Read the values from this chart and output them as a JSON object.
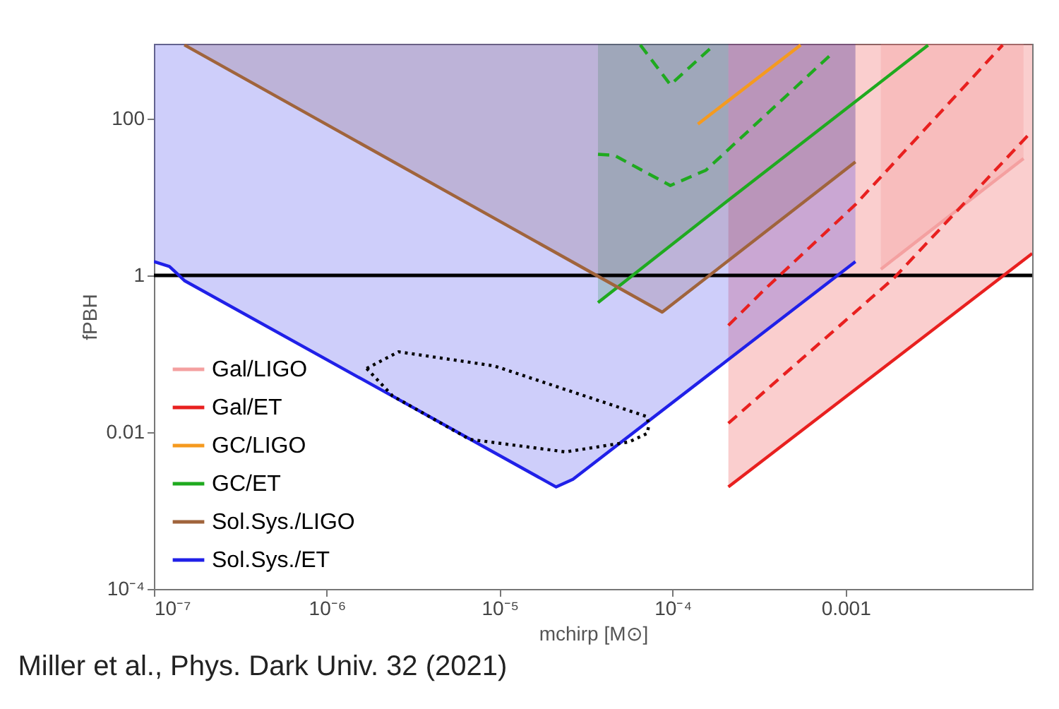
{
  "chart_data": {
    "type": "line",
    "xlabel": "mchirp [M⊙]",
    "ylabel": "fPBH",
    "log": "xy",
    "xlim": [
      1e-07,
      0.012
    ],
    "ylim": [
      0.0001,
      900
    ],
    "xticks": [
      {
        "value": 1e-07,
        "label": "10⁻⁷"
      },
      {
        "value": 1e-06,
        "label": "10⁻⁶"
      },
      {
        "value": 1e-05,
        "label": "10⁻⁵"
      },
      {
        "value": 0.0001,
        "label": "10⁻⁴"
      },
      0.001
    ],
    "yticks": [
      {
        "value": 0.0001,
        "label": "10⁻⁴"
      },
      0.01,
      1,
      100
    ],
    "grid": false,
    "legend": "bottom left",
    "series": [
      {
        "name": "Gal/LIGO",
        "color": "#f4a0a0",
        "x": [
          0.0016,
          0.0107
        ],
        "values": [
          1.2,
          31
        ],
        "lower": [
          1.2,
          31
        ],
        "upper": [
          900,
          900
        ]
      },
      {
        "name": "Gal/ET",
        "color": "#e8201f",
        "x": [
          0.00021,
          0.012
        ],
        "values": [
          0.002,
          1.9
        ],
        "lower": [
          0.002,
          1.9
        ],
        "upper": [
          900,
          900
        ]
      },
      {
        "name": "GC/LIGO",
        "color": "#f59a1f",
        "x": [
          0.00014,
          0.00055
        ],
        "values": [
          85,
          870
        ]
      },
      {
        "name": "GC/ET",
        "color": "#1faa1f",
        "x": [
          3.7e-05,
          0.00021,
          0.003
        ],
        "values": [
          0.45,
          9.1,
          865
        ],
        "lower": [
          0.45,
          9.1,
          null
        ],
        "upper": [
          900,
          900,
          null
        ]
      },
      {
        "name": "Sol.Sys./LIGO",
        "color": "#a0643c",
        "x": [
          1.5e-07,
          8.7e-05,
          0.00114
        ],
        "values": [
          870,
          0.34,
          28
        ],
        "lower": [
          870,
          0.34,
          28
        ],
        "upper": [
          900,
          900,
          900
        ]
      },
      {
        "name": "Sol.Sys./ET",
        "color": "#2020e8",
        "x": [
          1e-07,
          1.23e-07,
          1.51e-07,
          2.12e-05,
          2.65e-05,
          0.00114
        ],
        "values": [
          1.5,
          1.3,
          0.85,
          0.002,
          0.0025,
          1.5
        ],
        "lower": [
          1.5,
          1.3,
          0.85,
          0.002,
          0.0025,
          1.5
        ],
        "upper": [
          900,
          900,
          900,
          900,
          900,
          900
        ]
      },
      {
        "color": "#e8201f",
        "line_style": "dashed",
        "x": [
          0.00021,
          0.00034,
          0.00114,
          0.0081
        ],
        "values": [
          0.23,
          0.66,
          8,
          870
        ]
      },
      {
        "color": "#e8201f",
        "line_style": "dashed",
        "x": [
          0.00021,
          0.0019,
          0.0115
        ],
        "values": [
          0.013,
          0.92,
          63
        ]
      },
      {
        "color": "#1faa1f",
        "line_style": "dashed",
        "x": [
          3.7e-05,
          4.6e-05,
          9.7e-05,
          0.000156,
          0.00085
        ],
        "values": [
          35,
          34,
          14,
          22,
          700
        ]
      },
      {
        "color": "#1faa1f",
        "line_style": "dashed",
        "x": [
          6.5e-05,
          9.7e-05,
          0.000174
        ],
        "values": [
          870,
          270,
          870
        ]
      },
      {
        "color": "#000000",
        "line_style": "dotted",
        "x": [
          1.7e-06,
          2.6e-06,
          9.3e-06,
          7.1e-05,
          7.3e-05
        ],
        "values": [
          0.065,
          0.106,
          0.07,
          0.0158,
          0.0123
        ]
      },
      {
        "color": "#000000",
        "line_style": "dotted",
        "x": [
          1.7e-06,
          2.4e-06,
          6.7e-06,
          2.4e-05,
          5.6e-05,
          7.1e-05,
          7.3e-05
        ],
        "values": [
          0.065,
          0.029,
          0.0081,
          0.0056,
          0.0075,
          0.0096,
          0.0123
        ]
      }
    ],
    "ref_lines": [
      {
        "axis": "y",
        "value": 1,
        "color": "#000000"
      }
    ],
    "annotations": [
      "Miller et al., Phys. Dark Univ. 32 (2021)"
    ]
  }
}
